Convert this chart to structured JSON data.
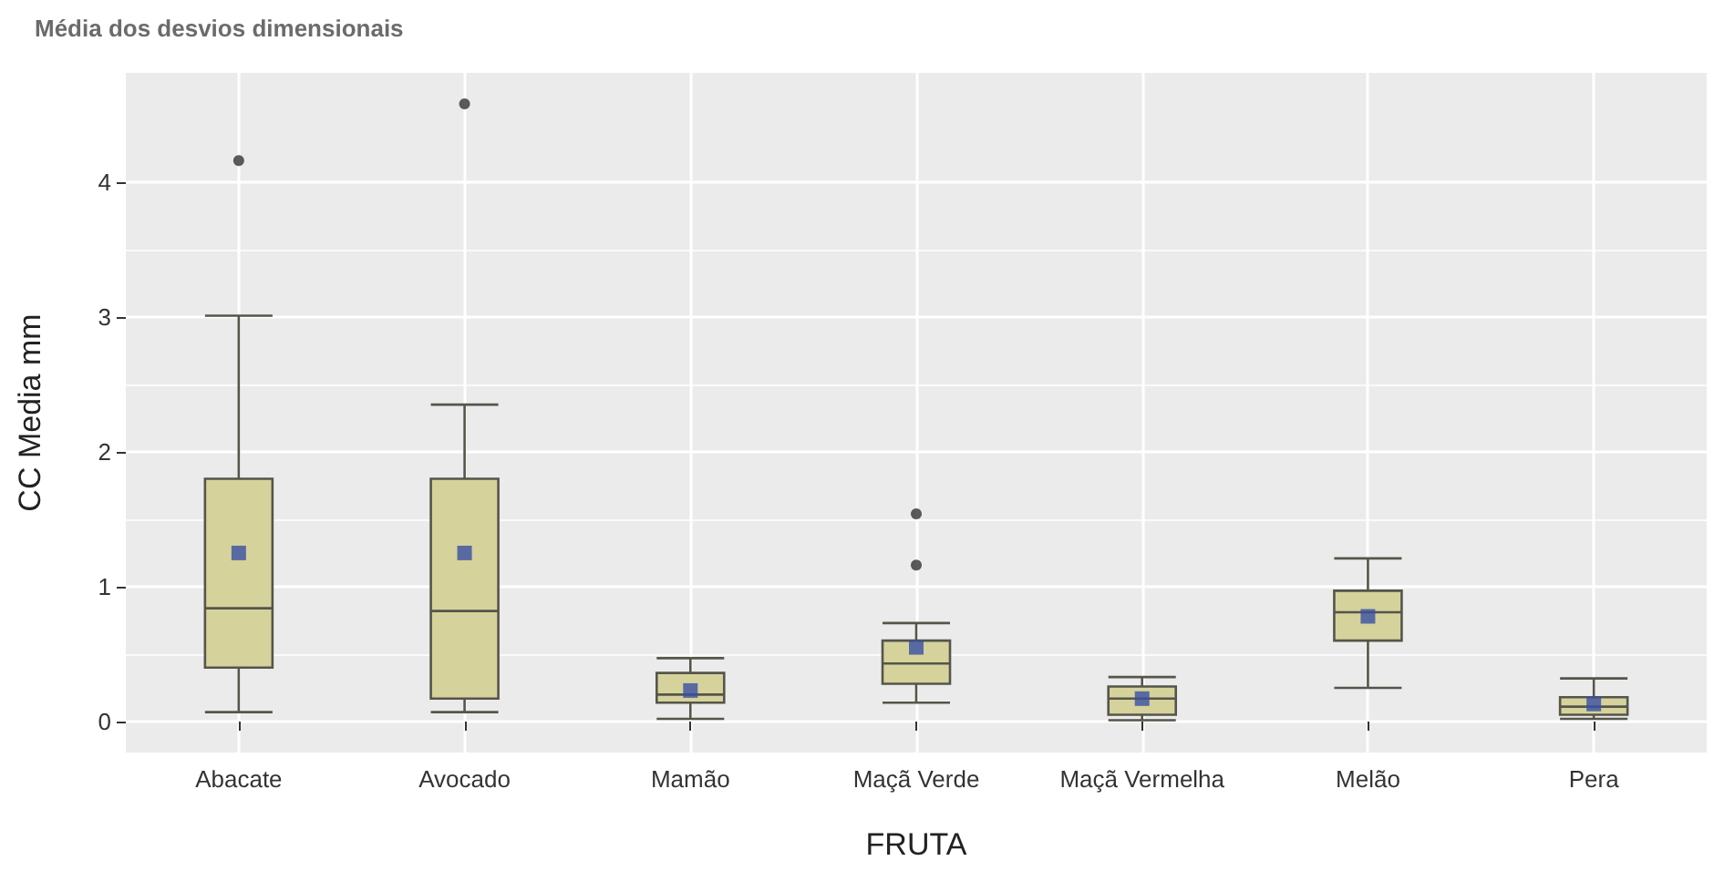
{
  "chart_data": {
    "type": "box",
    "title": "Média dos desvios dimensionais",
    "xlabel": "FRUTA",
    "ylabel": "CC Media mm",
    "categories": [
      "Abacate",
      "Avocado",
      "Mamão",
      "Maçã Verde",
      "Maçã Vermelha",
      "Melão",
      "Pera"
    ],
    "series": [
      {
        "color": "#d5d29c",
        "boxes": [
          {
            "low": 0.07,
            "q1": 0.4,
            "median": 0.84,
            "q3": 1.8,
            "high": 3.01,
            "mean": 1.25,
            "outliers": [
              4.16
            ]
          },
          {
            "low": 0.07,
            "q1": 0.17,
            "median": 0.82,
            "q3": 1.8,
            "high": 2.35,
            "mean": 1.25,
            "outliers": [
              4.58
            ]
          },
          {
            "low": 0.02,
            "q1": 0.14,
            "median": 0.2,
            "q3": 0.36,
            "high": 0.47,
            "mean": 0.23
          },
          {
            "low": 0.14,
            "q1": 0.28,
            "median": 0.43,
            "q3": 0.6,
            "high": 0.73,
            "mean": 0.55,
            "outliers": [
              1.16,
              1.54
            ]
          },
          {
            "low": 0.01,
            "q1": 0.05,
            "median": 0.17,
            "q3": 0.26,
            "high": 0.33,
            "mean": 0.17
          },
          {
            "low": 0.25,
            "q1": 0.6,
            "median": 0.81,
            "q3": 0.97,
            "high": 1.21,
            "mean": 0.78
          },
          {
            "low": 0.02,
            "q1": 0.05,
            "median": 0.11,
            "q3": 0.18,
            "high": 0.32,
            "mean": 0.13
          }
        ]
      }
    ],
    "ylim": [
      -0.23,
      4.81
    ],
    "yticks": [
      0,
      1,
      2,
      3,
      4
    ],
    "grid": true,
    "marker": "square"
  }
}
